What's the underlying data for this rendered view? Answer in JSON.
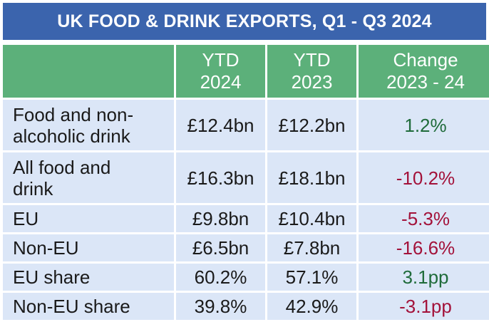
{
  "title": "UK FOOD & DRINK EXPORTS, Q1 - Q3 2024",
  "columns": [
    {
      "line1": "",
      "line2": ""
    },
    {
      "line1": "YTD",
      "line2": "2024"
    },
    {
      "line1": "YTD",
      "line2": "2023"
    },
    {
      "line1": "Change",
      "line2": "2023 - 24"
    }
  ],
  "rows": [
    {
      "label_line1": "Food and non-",
      "label_line2": "alcoholic drink",
      "ytd2024": "£12.4bn",
      "ytd2023": "£12.2bn",
      "change": "1.2%",
      "trend": "up"
    },
    {
      "label_line1": "All food and",
      "label_line2": "drink",
      "ytd2024": "£16.3bn",
      "ytd2023": "£18.1bn",
      "change": "-10.2%",
      "trend": "down"
    },
    {
      "label_line1": "EU",
      "label_line2": "",
      "ytd2024": "£9.8bn",
      "ytd2023": "£10.4bn",
      "change": "-5.3%",
      "trend": "down"
    },
    {
      "label_line1": "Non-EU",
      "label_line2": "",
      "ytd2024": "£6.5bn",
      "ytd2023": "£7.8bn",
      "change": "-16.6%",
      "trend": "down"
    },
    {
      "label_line1": "EU share",
      "label_line2": "",
      "ytd2024": "60.2%",
      "ytd2023": "57.1%",
      "change": "3.1pp",
      "trend": "up"
    },
    {
      "label_line1": "Non-EU share",
      "label_line2": "",
      "ytd2024": "39.8%",
      "ytd2023": "42.9%",
      "change": "-3.1pp",
      "trend": "down"
    }
  ],
  "colors": {
    "title_bg": "#3b64ad",
    "header_bg": "#5cb07a",
    "cell_bg": "#dbe6f7",
    "positive": "#1f6b3a",
    "negative": "#a3123a"
  }
}
